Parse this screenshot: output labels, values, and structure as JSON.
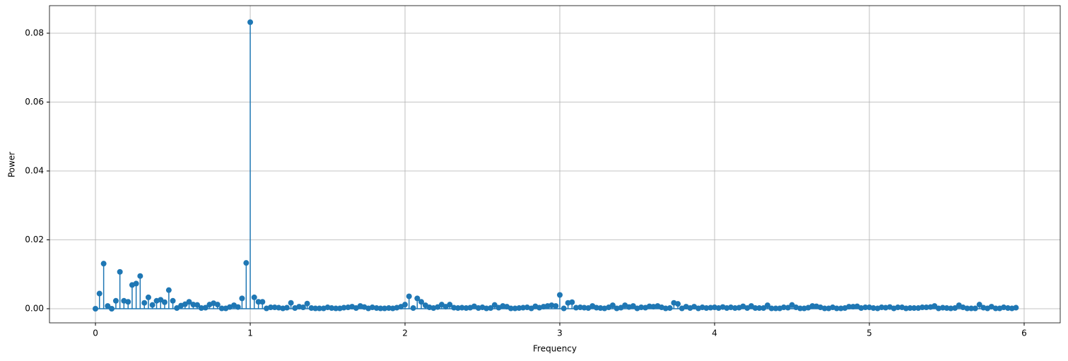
{
  "chart_data": {
    "type": "stem",
    "xlabel": "Frequency",
    "ylabel": "Power",
    "color": "#1f77b4",
    "grid": true,
    "xlim": [
      -0.297,
      6.233
    ],
    "ylim": [
      -0.0041,
      0.088
    ],
    "xticks": [
      0,
      1,
      2,
      3,
      4,
      5,
      6
    ],
    "yticks": [
      {
        "value": 0,
        "label": "0.00"
      },
      {
        "value": 0.02,
        "label": "0.02"
      },
      {
        "value": 0.04,
        "label": "0.04"
      },
      {
        "value": 0.06,
        "label": "0.06"
      },
      {
        "value": 0.08,
        "label": "0.08"
      }
    ],
    "x": [
      0,
      0.026,
      0.053,
      0.079,
      0.105,
      0.132,
      0.158,
      0.184,
      0.211,
      0.237,
      0.263,
      0.289,
      0.316,
      0.342,
      0.368,
      0.395,
      0.421,
      0.447,
      0.474,
      0.5,
      0.526,
      0.553,
      0.579,
      0.605,
      0.632,
      0.658,
      0.684,
      0.711,
      0.737,
      0.763,
      0.789,
      0.816,
      0.842,
      0.868,
      0.895,
      0.921,
      0.947,
      0.974,
      1,
      1.026,
      1.053,
      1.079,
      1.105,
      1.132,
      1.158,
      1.184,
      1.211,
      1.237,
      1.263,
      1.289,
      1.316,
      1.342,
      1.368,
      1.395,
      1.421,
      1.447,
      1.474,
      1.5,
      1.526,
      1.553,
      1.579,
      1.605,
      1.632,
      1.658,
      1.684,
      1.711,
      1.737,
      1.763,
      1.789,
      1.816,
      1.842,
      1.868,
      1.895,
      1.921,
      1.947,
      1.974,
      2,
      2.026,
      2.053,
      2.079,
      2.105,
      2.132,
      2.158,
      2.184,
      2.211,
      2.237,
      2.263,
      2.289,
      2.316,
      2.342,
      2.368,
      2.395,
      2.421,
      2.447,
      2.474,
      2.5,
      2.526,
      2.553,
      2.579,
      2.605,
      2.632,
      2.658,
      2.684,
      2.711,
      2.737,
      2.763,
      2.789,
      2.816,
      2.842,
      2.868,
      2.895,
      2.921,
      2.947,
      2.974,
      3,
      3.026,
      3.053,
      3.079,
      3.105,
      3.132,
      3.158,
      3.184,
      3.211,
      3.237,
      3.263,
      3.289,
      3.316,
      3.342,
      3.368,
      3.395,
      3.421,
      3.447,
      3.474,
      3.5,
      3.526,
      3.553,
      3.579,
      3.605,
      3.632,
      3.658,
      3.684,
      3.711,
      3.737,
      3.763,
      3.789,
      3.816,
      3.842,
      3.868,
      3.895,
      3.921,
      3.947,
      3.974,
      4,
      4.026,
      4.053,
      4.079,
      4.105,
      4.132,
      4.158,
      4.184,
      4.211,
      4.237,
      4.263,
      4.289,
      4.316,
      4.342,
      4.368,
      4.395,
      4.421,
      4.447,
      4.474,
      4.5,
      4.526,
      4.553,
      4.579,
      4.605,
      4.632,
      4.658,
      4.684,
      4.711,
      4.737,
      4.763,
      4.789,
      4.816,
      4.842,
      4.868,
      4.895,
      4.921,
      4.947,
      4.974,
      5,
      5.026,
      5.053,
      5.079,
      5.105,
      5.132,
      5.158,
      5.184,
      5.211,
      5.237,
      5.263,
      5.289,
      5.316,
      5.342,
      5.368,
      5.395,
      5.421,
      5.447,
      5.474,
      5.5,
      5.526,
      5.553,
      5.579,
      5.605,
      5.632,
      5.658,
      5.684,
      5.711,
      5.737,
      5.763,
      5.789,
      5.816,
      5.842,
      5.868,
      5.895,
      5.921,
      5.947
    ],
    "values": [
      0,
      0.0044,
      0.0131,
      0.0008,
      0.0,
      0.0023,
      0.0107,
      0.0023,
      0.002,
      0.0069,
      0.0073,
      0.0095,
      0.0017,
      0.0033,
      0.0011,
      0.0023,
      0.0026,
      0.0019,
      0.0054,
      0.0023,
      0.0002,
      0.0009,
      0.0013,
      0.002,
      0.0012,
      0.0011,
      0.0002,
      0.0003,
      0.0012,
      0.0016,
      0.0012,
      0.0001,
      0.0001,
      0.0005,
      0.001,
      0.0005,
      0.003,
      0.0133,
      0.0832,
      0.0033,
      0.002,
      0.002,
      0.0001,
      0.0004,
      0.0004,
      0.0003,
      0.0001,
      0.0003,
      0.0017,
      0.0002,
      0.0006,
      0.0004,
      0.0015,
      0.0002,
      0.0001,
      0.0001,
      0.0001,
      0.0004,
      0.0002,
      0.0001,
      0.0001,
      0.0003,
      0.0004,
      0.0006,
      0.0002,
      0.0008,
      0.0005,
      0.0001,
      0.0004,
      0.0002,
      0.0001,
      0.0001,
      0.0002,
      0.0001,
      0.0003,
      0.0006,
      0.0012,
      0.0036,
      0.0002,
      0.003,
      0.002,
      0.001,
      0.0004,
      0.0002,
      0.0005,
      0.0012,
      0.0006,
      0.0012,
      0.0003,
      0.0002,
      0.0003,
      0.0002,
      0.0003,
      0.0007,
      0.0002,
      0.0004,
      0.0001,
      0.0002,
      0.0011,
      0.0003,
      0.0008,
      0.0006,
      0.0001,
      0.0001,
      0.0002,
      0.0003,
      0.0004,
      0.0001,
      0.0007,
      0.0003,
      0.0006,
      0.0008,
      0.001,
      0.0008,
      0.004,
      0.0001,
      0.0017,
      0.0019,
      0.0003,
      0.0004,
      0.0003,
      0.0002,
      0.0008,
      0.0003,
      0.0002,
      0.0001,
      0.0004,
      0.001,
      0.0001,
      0.0003,
      0.001,
      0.0005,
      0.0008,
      0.0001,
      0.0004,
      0.0003,
      0.0007,
      0.0006,
      0.0008,
      0.0004,
      0.0001,
      0.0002,
      0.0017,
      0.0014,
      0.0001,
      0.0006,
      0.0002,
      0.0006,
      0.0001,
      0.0004,
      0.0002,
      0.0003,
      0.0004,
      0.0002,
      0.0005,
      0.0002,
      0.0004,
      0.0002,
      0.0003,
      0.0007,
      0.0002,
      0.0008,
      0.0002,
      0.0002,
      0.0002,
      0.001,
      0.0001,
      0.0001,
      0.0001,
      0.0004,
      0.0003,
      0.0011,
      0.0004,
      0.0001,
      0.0001,
      0.0003,
      0.0008,
      0.0007,
      0.0004,
      0.0001,
      0.0001,
      0.0004,
      0.0001,
      0.0001,
      0.0002,
      0.0006,
      0.0006,
      0.0007,
      0.0002,
      0.0004,
      0.0004,
      0.0002,
      0.0001,
      0.0004,
      0.0003,
      0.0005,
      0.0001,
      0.0004,
      0.0004,
      0.0001,
      0.0002,
      0.0002,
      0.0002,
      0.0004,
      0.0004,
      0.0005,
      0.0008,
      0.0001,
      0.0003,
      0.0002,
      0.0001,
      0.0002,
      0.001,
      0.0004,
      0.0001,
      0.0001,
      0.0001,
      0.0012,
      0.0003,
      0.0001,
      0.0006,
      0.0001,
      0.0001,
      0.0004,
      0.0002,
      0.0001,
      0.0003
    ]
  }
}
